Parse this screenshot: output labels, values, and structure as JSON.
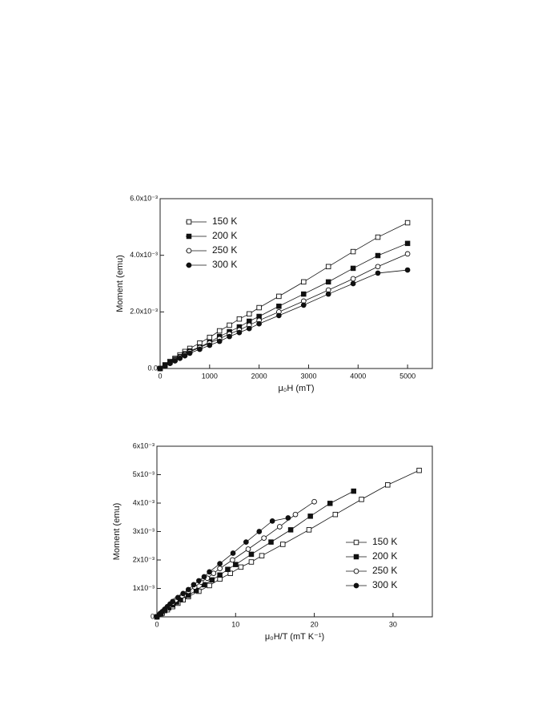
{
  "chart_data": [
    {
      "type": "line",
      "xlabel": "μ₀H (mT)",
      "ylabel": "Moment (emu)",
      "xlim": [
        0,
        5500
      ],
      "xticks": [
        0,
        1000,
        2000,
        3000,
        4000,
        5000
      ],
      "ylim": [
        0,
        0.006
      ],
      "yticks": [
        {
          "value": 0,
          "label": "0.0"
        },
        {
          "value": 0.002,
          "label": "2.0x10⁻³"
        },
        {
          "value": 0.004,
          "label": "4.0x10⁻³"
        },
        {
          "value": 0.006,
          "label": "6.0x10⁻³"
        }
      ],
      "legend": "upper left",
      "x": [
        0,
        100,
        200,
        300,
        400,
        500,
        600,
        800,
        1000,
        1200,
        1400,
        1600,
        1800,
        2000,
        2400,
        2900,
        3400,
        3900,
        4400,
        5000
      ],
      "series": [
        {
          "name": "150 K",
          "color": "#111111",
          "marker": "square-open",
          "values": [
            0,
            0.00013,
            0.00025,
            0.00036,
            0.00048,
            0.0006,
            0.00071,
            0.0009,
            0.0011,
            0.00133,
            0.00153,
            0.00175,
            0.00193,
            0.00215,
            0.00255,
            0.00306,
            0.0036,
            0.00413,
            0.00464,
            0.00515
          ]
        },
        {
          "name": "200 K",
          "color": "#111111",
          "marker": "square-filled",
          "values": [
            0,
            0.00011,
            0.00022,
            0.00032,
            0.00042,
            0.00052,
            0.00062,
            0.00076,
            0.00093,
            0.00113,
            0.0013,
            0.00147,
            0.00167,
            0.00184,
            0.0022,
            0.00263,
            0.00306,
            0.00354,
            0.00399,
            0.00442
          ]
        },
        {
          "name": "250 K",
          "color": "#111111",
          "marker": "circle-open",
          "values": [
            0,
            0.0001,
            0.0002,
            0.0003,
            0.0004,
            0.00049,
            0.00059,
            0.00074,
            0.0009,
            0.00105,
            0.00122,
            0.00136,
            0.00153,
            0.0017,
            0.002,
            0.00238,
            0.00277,
            0.00317,
            0.0036,
            0.00405
          ]
        },
        {
          "name": "300 K",
          "color": "#111111",
          "marker": "circle-filled",
          "values": [
            0,
            9e-05,
            0.00018,
            0.00027,
            0.00036,
            0.00045,
            0.00054,
            0.00068,
            0.00082,
            0.00096,
            0.00113,
            0.00127,
            0.00141,
            0.00158,
            0.00187,
            0.00224,
            0.00263,
            0.003,
            0.00337,
            0.00348
          ]
        }
      ]
    },
    {
      "type": "line",
      "xlabel": "μ₀H/T (mT K⁻¹)",
      "ylabel": "Moment (emu)",
      "xlim": [
        0,
        35
      ],
      "xticks": [
        0,
        10,
        20,
        30
      ],
      "ylim": [
        0,
        0.006
      ],
      "yticks": [
        {
          "value": 0,
          "label": "0"
        },
        {
          "value": 0.001,
          "label": "1x10⁻³"
        },
        {
          "value": 0.002,
          "label": "2x10⁻³"
        },
        {
          "value": 0.003,
          "label": "3x10⁻³"
        },
        {
          "value": 0.004,
          "label": "4x10⁻³"
        },
        {
          "value": 0.005,
          "label": "5x10⁻³"
        },
        {
          "value": 0.006,
          "label": "6x10⁻³"
        }
      ],
      "legend": "lower right",
      "series": [
        {
          "name": "150 K",
          "color": "#111111",
          "marker": "square-open",
          "x": [
            0,
            0.67,
            1.33,
            2,
            2.67,
            3.33,
            4,
            5.33,
            6.67,
            8,
            9.33,
            10.67,
            12,
            13.33,
            16,
            19.33,
            22.67,
            26,
            29.33,
            33.33
          ],
          "values": [
            0,
            0.00013,
            0.00025,
            0.00036,
            0.00048,
            0.0006,
            0.00071,
            0.0009,
            0.0011,
            0.00133,
            0.00153,
            0.00175,
            0.00193,
            0.00215,
            0.00255,
            0.00306,
            0.0036,
            0.00413,
            0.00464,
            0.00515
          ]
        },
        {
          "name": "200 K",
          "color": "#111111",
          "marker": "square-filled",
          "x": [
            0,
            0.5,
            1,
            1.5,
            2,
            2.5,
            3,
            4,
            5,
            6,
            7,
            8,
            9,
            10,
            12,
            14.5,
            17,
            19.5,
            22,
            25
          ],
          "values": [
            0,
            0.00011,
            0.00022,
            0.00032,
            0.00042,
            0.00052,
            0.00062,
            0.00076,
            0.00093,
            0.00113,
            0.0013,
            0.00147,
            0.00167,
            0.00184,
            0.0022,
            0.00263,
            0.00306,
            0.00354,
            0.00399,
            0.00442
          ]
        },
        {
          "name": "250 K",
          "color": "#111111",
          "marker": "circle-open",
          "x": [
            0,
            0.4,
            0.8,
            1.2,
            1.6,
            2,
            2.4,
            3.2,
            4,
            4.8,
            5.6,
            6.4,
            7.2,
            8,
            9.6,
            11.6,
            13.6,
            15.6,
            17.6,
            20
          ],
          "values": [
            0,
            0.0001,
            0.0002,
            0.0003,
            0.0004,
            0.00049,
            0.00059,
            0.00074,
            0.0009,
            0.00105,
            0.00122,
            0.00136,
            0.00153,
            0.0017,
            0.002,
            0.00238,
            0.00277,
            0.00317,
            0.0036,
            0.00405
          ]
        },
        {
          "name": "300 K",
          "color": "#111111",
          "marker": "circle-filled",
          "x": [
            0,
            0.33,
            0.67,
            1,
            1.33,
            1.67,
            2,
            2.67,
            3.33,
            4,
            4.67,
            5.33,
            6,
            6.67,
            8,
            9.67,
            11.33,
            13,
            14.67,
            16.67
          ],
          "values": [
            0,
            9e-05,
            0.00018,
            0.00027,
            0.00036,
            0.00045,
            0.00054,
            0.00068,
            0.00082,
            0.00096,
            0.00113,
            0.00127,
            0.00141,
            0.00158,
            0.00187,
            0.00224,
            0.00263,
            0.003,
            0.00337,
            0.00348
          ]
        }
      ]
    }
  ]
}
